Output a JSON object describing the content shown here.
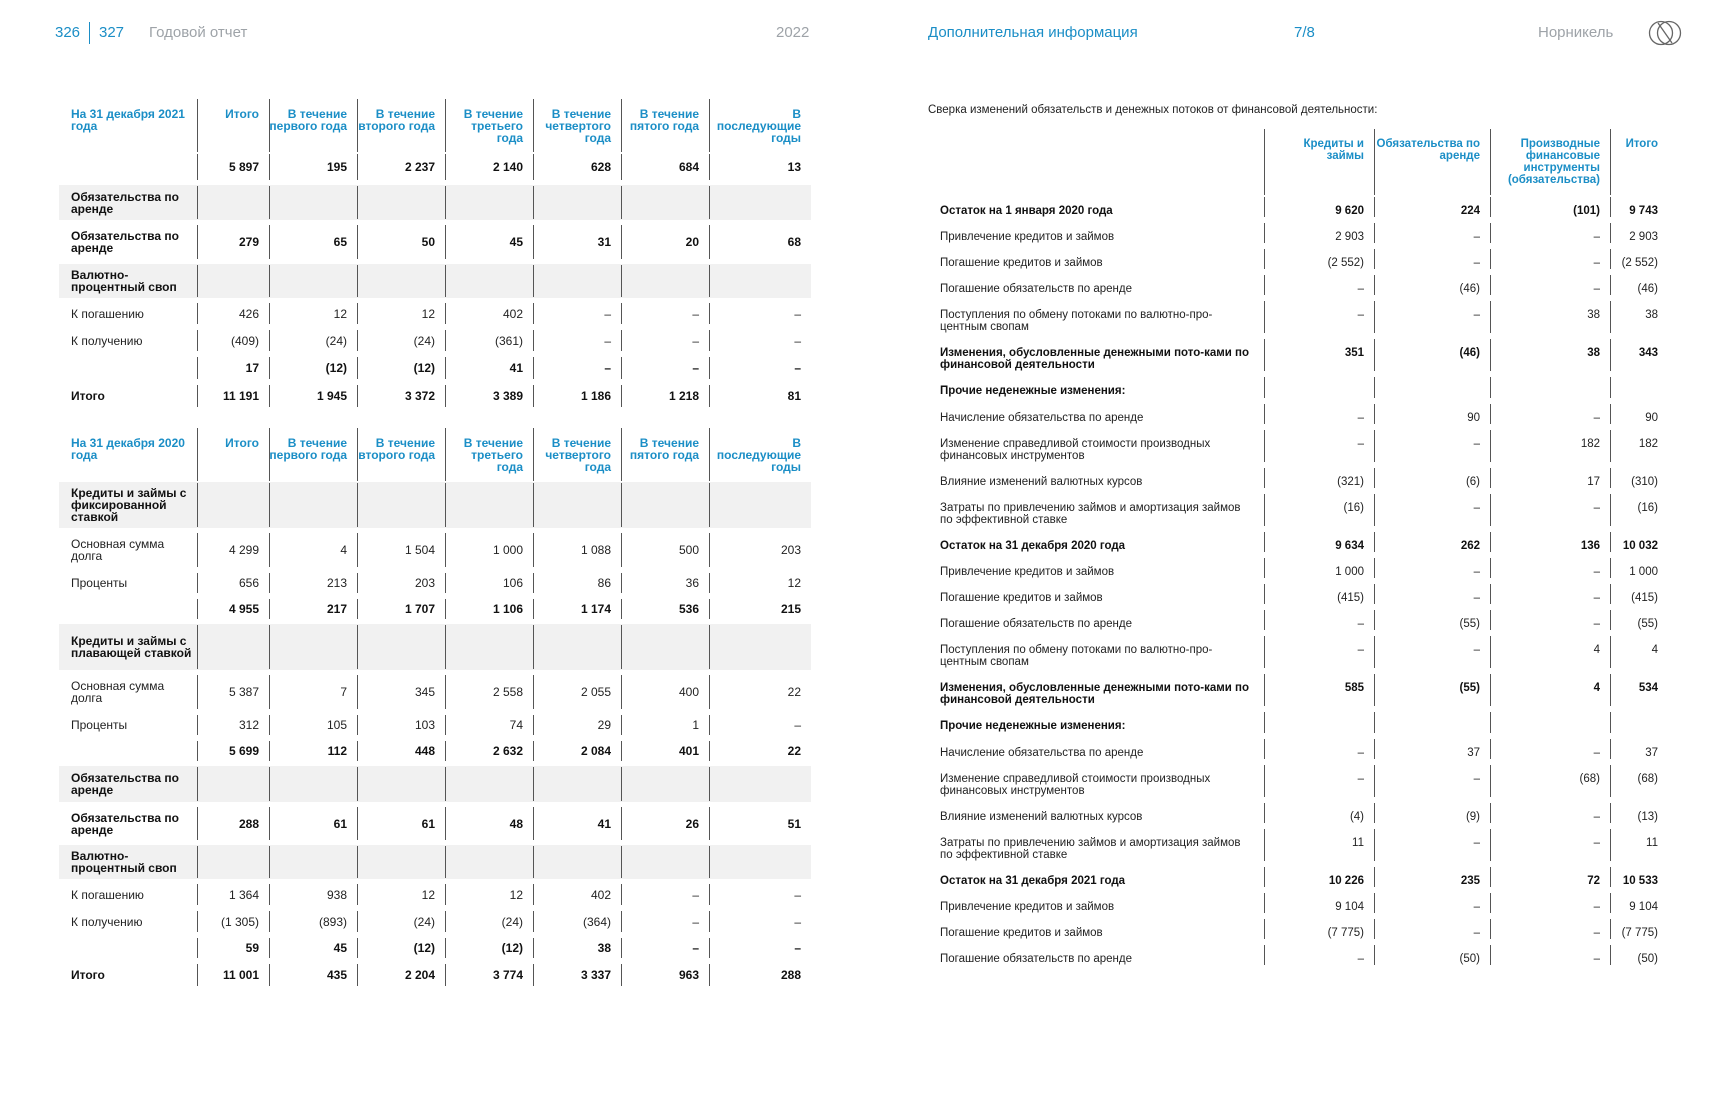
{
  "header": {
    "page_left": "326",
    "page_right": "327",
    "report_title": "Годовой отчет",
    "year": "2022",
    "section": "Дополнительная информация",
    "section_page": "7/8",
    "company": "Норникель"
  },
  "table_2021": {
    "headers": [
      "На 31 декабря 2021 года",
      "Итого",
      "В течение первого года",
      "В течение второго года",
      "В течение третьего года",
      "В течение четвертого года",
      "В течение пятого года",
      "В последующие годы"
    ],
    "rows": [
      {
        "label": "",
        "values": [
          "5 897",
          "195",
          "2 237",
          "2 140",
          "628",
          "684",
          "13"
        ],
        "bold": true
      },
      {
        "label": "Обязательства по аренде",
        "values": [
          "",
          "",
          "",
          "",
          "",
          "",
          ""
        ],
        "shade": true,
        "bold": true
      },
      {
        "label": "Обязательства по аренде",
        "values": [
          "279",
          "65",
          "50",
          "45",
          "31",
          "20",
          "68"
        ],
        "bold": true
      },
      {
        "label": "Валютно-процентный своп",
        "values": [
          "",
          "",
          "",
          "",
          "",
          "",
          ""
        ],
        "shade": true,
        "bold": true
      },
      {
        "label": "К погашению",
        "values": [
          "426",
          "12",
          "12",
          "402",
          "–",
          "–",
          "–"
        ]
      },
      {
        "label": "К получению",
        "values": [
          "(409)",
          "(24)",
          "(24)",
          "(361)",
          "–",
          "–",
          "–"
        ]
      },
      {
        "label": "",
        "values": [
          "17",
          "(12)",
          "(12)",
          "41",
          "–",
          "–",
          "–"
        ],
        "bold": true
      },
      {
        "label": "Итого",
        "values": [
          "11 191",
          "1 945",
          "3 372",
          "3 389",
          "1 186",
          "1 218",
          "81"
        ],
        "bold": true
      }
    ]
  },
  "table_2020": {
    "headers": [
      "На 31 декабря 2020 года",
      "Итого",
      "В течение первого года",
      "В течение второго года",
      "В течение третьего года",
      "В течение четвертого года",
      "В течение пятого года",
      "В последующие годы"
    ],
    "rows": [
      {
        "label": "Кредиты и займы с фиксированной ставкой",
        "values": [
          "",
          "",
          "",
          "",
          "",
          "",
          ""
        ],
        "shade": true,
        "bold": true
      },
      {
        "label": "Основная сумма долга",
        "values": [
          "4 299",
          "4",
          "1 504",
          "1 000",
          "1 088",
          "500",
          "203"
        ]
      },
      {
        "label": "Проценты",
        "values": [
          "656",
          "213",
          "203",
          "106",
          "86",
          "36",
          "12"
        ]
      },
      {
        "label": "",
        "values": [
          "4 955",
          "217",
          "1 707",
          "1 106",
          "1 174",
          "536",
          "215"
        ],
        "bold": true
      },
      {
        "label": "Кредиты и займы с плавающей ставкой",
        "values": [
          "",
          "",
          "",
          "",
          "",
          "",
          ""
        ],
        "shade": true,
        "bold": true
      },
      {
        "label": "Основная сумма долга",
        "values": [
          "5 387",
          "7",
          "345",
          "2 558",
          "2 055",
          "400",
          "22"
        ]
      },
      {
        "label": "Проценты",
        "values": [
          "312",
          "105",
          "103",
          "74",
          "29",
          "1",
          "–"
        ]
      },
      {
        "label": "",
        "values": [
          "5 699",
          "112",
          "448",
          "2 632",
          "2 084",
          "401",
          "22"
        ],
        "bold": true
      },
      {
        "label": "Обязательства по аренде",
        "values": [
          "",
          "",
          "",
          "",
          "",
          "",
          ""
        ],
        "shade": true,
        "bold": true
      },
      {
        "label": "Обязательства по аренде",
        "values": [
          "288",
          "61",
          "61",
          "48",
          "41",
          "26",
          "51"
        ],
        "bold": true
      },
      {
        "label": "Валютно-процентный своп",
        "values": [
          "",
          "",
          "",
          "",
          "",
          "",
          ""
        ],
        "shade": true,
        "bold": true
      },
      {
        "label": "К погашению",
        "values": [
          "1 364",
          "938",
          "12",
          "12",
          "402",
          "–",
          "–"
        ]
      },
      {
        "label": "К получению",
        "values": [
          "(1 305)",
          "(893)",
          "(24)",
          "(24)",
          "(364)",
          "–",
          "–"
        ]
      },
      {
        "label": "",
        "values": [
          "59",
          "45",
          "(12)",
          "(12)",
          "38",
          "–",
          "–"
        ],
        "bold": true
      },
      {
        "label": "Итого",
        "values": [
          "11 001",
          "435",
          "2 204",
          "3 774",
          "3 337",
          "963",
          "288"
        ],
        "bold": true
      }
    ]
  },
  "reconciliation": {
    "intro": "Сверка изменений обязательств и денежных потоков от финансовой деятельности:",
    "headers": [
      "",
      "Кредиты и займы",
      "Обязательства по аренде",
      "Производные финансовые инструменты (обязательства)",
      "Итого"
    ],
    "rows": [
      {
        "label": "Остаток на 1 января 2020 года",
        "values": [
          "9 620",
          "224",
          "(101)",
          "9 743"
        ],
        "bold": true
      },
      {
        "label": "Привлечение кредитов и займов",
        "values": [
          "2 903",
          "–",
          "–",
          "2 903"
        ]
      },
      {
        "label": "Погашение кредитов и займов",
        "values": [
          "(2 552)",
          "–",
          "–",
          "(2 552)"
        ]
      },
      {
        "label": "Погашение обязательств по аренде",
        "values": [
          "–",
          "(46)",
          "–",
          "(46)"
        ]
      },
      {
        "label": "Поступления по обмену потоками по валютно-про-центным свопам",
        "values": [
          "–",
          "–",
          "38",
          "38"
        ]
      },
      {
        "label": "Изменения, обусловленные денежными пото-ками по финансовой деятельности",
        "values": [
          "351",
          "(46)",
          "38",
          "343"
        ],
        "bold": true
      },
      {
        "label": "Прочие неденежные изменения:",
        "values": [
          "",
          "",
          "",
          ""
        ],
        "bold": true
      },
      {
        "label": "Начисление обязательства по аренде",
        "values": [
          "–",
          "90",
          "–",
          "90"
        ]
      },
      {
        "label": "Изменение справедливой стоимости производных финансовых инструментов",
        "values": [
          "–",
          "–",
          "182",
          "182"
        ]
      },
      {
        "label": "Влияние изменений валютных курсов",
        "values": [
          "(321)",
          "(6)",
          "17",
          "(310)"
        ]
      },
      {
        "label": "Затраты по привлечению займов и амортизация займов по эффективной ставке",
        "values": [
          "(16)",
          "–",
          "–",
          "(16)"
        ]
      },
      {
        "label": "Остаток на 31 декабря 2020 года",
        "values": [
          "9 634",
          "262",
          "136",
          "10 032"
        ],
        "bold": true
      },
      {
        "label": "Привлечение кредитов и займов",
        "values": [
          "1 000",
          "–",
          "–",
          "1 000"
        ]
      },
      {
        "label": "Погашение кредитов и займов",
        "values": [
          "(415)",
          "–",
          "–",
          "(415)"
        ]
      },
      {
        "label": "Погашение обязательств по аренде",
        "values": [
          "–",
          "(55)",
          "–",
          "(55)"
        ]
      },
      {
        "label": "Поступления по обмену потоками по валютно-про-центным свопам",
        "values": [
          "–",
          "–",
          "4",
          "4"
        ]
      },
      {
        "label": "Изменения, обусловленные денежными пото-ками по финансовой деятельности",
        "values": [
          "585",
          "(55)",
          "4",
          "534"
        ],
        "bold": true
      },
      {
        "label": "Прочие неденежные изменения:",
        "values": [
          "",
          "",
          "",
          ""
        ],
        "bold": true
      },
      {
        "label": "Начисление обязательства по аренде",
        "values": [
          "–",
          "37",
          "–",
          "37"
        ]
      },
      {
        "label": "Изменение справедливой стоимости производных финансовых инструментов",
        "values": [
          "–",
          "–",
          "(68)",
          "(68)"
        ]
      },
      {
        "label": "Влияние изменений валютных курсов",
        "values": [
          "(4)",
          "(9)",
          "–",
          "(13)"
        ]
      },
      {
        "label": "Затраты по привлечению займов и амортизация займов по эффективной ставке",
        "values": [
          "11",
          "–",
          "–",
          "11"
        ]
      },
      {
        "label": "Остаток на 31 декабря 2021 года",
        "values": [
          "10 226",
          "235",
          "72",
          "10 533"
        ],
        "bold": true
      },
      {
        "label": "Привлечение кредитов и займов",
        "values": [
          "9 104",
          "–",
          "–",
          "9 104"
        ]
      },
      {
        "label": "Погашение кредитов и займов",
        "values": [
          "(7 775)",
          "–",
          "–",
          "(7 775)"
        ]
      },
      {
        "label": "Погашение обязательств по аренде",
        "values": [
          "–",
          "(50)",
          "–",
          "(50)"
        ]
      }
    ]
  },
  "colors": {
    "accent": "#1b8ec6",
    "muted": "#9ea3a8",
    "shade": "#f1f1f1"
  },
  "icons": {
    "logo": "nornickel-logo-icon"
  }
}
